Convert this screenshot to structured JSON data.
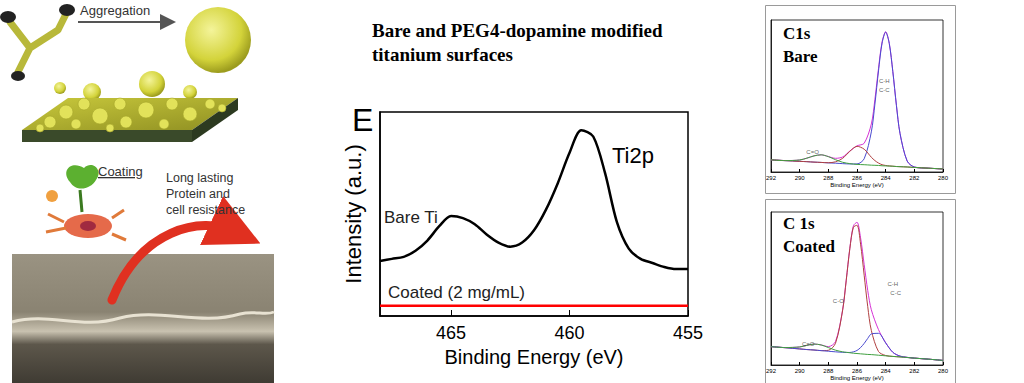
{
  "header": {
    "title": [
      "Bare and PEG4-dopamine modified",
      "titanium surfaces"
    ]
  },
  "diagram": {
    "steps": [
      "Aggregation",
      "Coating"
    ],
    "result": [
      "Long lasting",
      "Protein and",
      "cell resistance"
    ]
  },
  "chart_data": [
    {
      "type": "line",
      "panel_label": "E",
      "title": "Ti2p",
      "x_label": "Binding Energy (eV)",
      "y_label": "Intensity (a.u.)",
      "xlim": [
        468,
        455
      ],
      "xticks": [
        465,
        460,
        455
      ],
      "ylim": [
        0,
        100
      ],
      "tick_labels": "x",
      "grid": false,
      "x": [
        468,
        467.5,
        467,
        466.5,
        466,
        465.5,
        465,
        464.5,
        464,
        463.5,
        463,
        462.5,
        462,
        461.5,
        461,
        460.5,
        460,
        459.5,
        459,
        458.5,
        458,
        457.5,
        457,
        456.5,
        456,
        455.5,
        455
      ],
      "series": [
        {
          "name": "Bare Ti",
          "color": "#000000",
          "values": [
            27,
            28,
            29,
            32,
            37,
            44,
            49,
            48,
            45,
            40,
            36,
            34,
            36,
            42,
            52,
            65,
            80,
            91,
            88,
            70,
            46,
            33,
            28,
            26,
            24,
            23,
            23
          ]
        },
        {
          "name": "Coated (2 mg/mL)",
          "color": "#ff0000",
          "values": [
            5,
            5,
            5,
            5,
            5,
            5,
            5,
            5,
            5,
            5,
            5,
            5,
            5,
            5,
            5,
            5,
            5,
            5,
            5,
            5,
            5,
            5,
            5,
            5,
            5,
            5,
            5
          ]
        }
      ]
    },
    {
      "type": "line",
      "title": "C1s\nBare",
      "x_label": "Binding Energy (eV)",
      "xlim": [
        292,
        280
      ],
      "xticks": [
        292,
        290,
        288,
        286,
        284,
        282,
        280
      ],
      "ylim": [
        0,
        100
      ],
      "tick_labels": "x",
      "grid": false,
      "x": [
        292,
        291,
        290,
        289.5,
        289,
        288.5,
        288,
        287.5,
        287,
        286.5,
        286,
        285.5,
        285,
        284.75,
        284.5,
        284.25,
        284,
        283.75,
        283.5,
        283.25,
        283,
        282.5,
        282,
        281,
        280
      ],
      "series": [
        {
          "color": "#d633d6",
          "values": [
            8,
            7.5,
            7.9,
            9.1,
            10.6,
            11.3,
            10.2,
            9,
            9.9,
            13.8,
            17.2,
            18.9,
            31.6,
            47.8,
            68.1,
            85.5,
            92.3,
            84.7,
            66,
            43.9,
            25.4,
            7.2,
            3.3,
            2.5,
            2
          ]
        },
        {
          "color": "#4a4ad0",
          "values": [
            8,
            7.5,
            7,
            6.8,
            6.5,
            6.3,
            6,
            5.8,
            5.5,
            5.3,
            5.3,
            8.7,
            26.4,
            44.7,
            66.5,
            84.8,
            92,
            84.6,
            66,
            43.9,
            25.4,
            7.2,
            3.3,
            2.5,
            2
          ]
        },
        {
          "color": "#b04040",
          "values": [
            8,
            7.5,
            7,
            6.8,
            6.5,
            6.3,
            6.1,
            6.7,
            9,
            13.6,
            16.9,
            15,
            9.7,
            7.5,
            5.9,
            4.8,
            4.3,
            4,
            3.8,
            3.6,
            3.5,
            3.3,
            3,
            2.5,
            2
          ]
        },
        {
          "color": "#40a040",
          "values": [
            8,
            7.5,
            7.9,
            9.1,
            10.6,
            11.3,
            10.1,
            8.1,
            6.4,
            5.5,
            5,
            4.8,
            4.5,
            4.4,
            4.3,
            4.1,
            4,
            3.9,
            3.8,
            3.6,
            3.5,
            3.3,
            3,
            2.5,
            2
          ]
        }
      ],
      "annotations": [
        {
          "text": "C-H",
          "x": 284.1,
          "y": 60
        },
        {
          "text": "C-C",
          "x": 284.1,
          "y": 54
        },
        {
          "text": "C=O",
          "x": 289.1,
          "y": 13
        }
      ]
    },
    {
      "type": "line",
      "title": "C 1s\nCoated",
      "x_label": "Binding Energy (eV)",
      "xlim": [
        292,
        280
      ],
      "xticks": [
        292,
        290,
        288,
        286,
        284,
        282,
        280
      ],
      "ylim": [
        0,
        100
      ],
      "tick_labels": "x",
      "grid": false,
      "x": [
        292,
        291,
        290,
        289.5,
        289,
        288.5,
        288,
        287.5,
        287,
        286.75,
        286.5,
        286.25,
        286,
        285.75,
        285.5,
        285.25,
        285,
        284.5,
        284,
        283.5,
        283,
        282.5,
        282,
        281,
        280
      ],
      "series": [
        {
          "color": "#d633d6",
          "values": [
            12,
            11.4,
            11.8,
            12.8,
            13.7,
            13.1,
            12,
            15.3,
            36.2,
            55.7,
            76.4,
            91,
            93.3,
            83.1,
            65.7,
            48.6,
            36.1,
            23.1,
            14.6,
            8.3,
            5.8,
            5,
            4.5,
            3.8,
            3
          ]
        },
        {
          "color": "#b04040",
          "values": [
            12,
            11.3,
            10.5,
            10.1,
            9.8,
            9.4,
            9.6,
            14.2,
            35.9,
            55.4,
            76,
            90.1,
            91.3,
            79,
            58.7,
            38.1,
            22.6,
            8.8,
            6.2,
            5.6,
            5.3,
            4.9,
            4.5,
            3.8,
            3
          ]
        },
        {
          "color": "#4a4ad0",
          "values": [
            12,
            11.3,
            10.5,
            10.1,
            9.8,
            9.4,
            9,
            8.6,
            8.3,
            8.2,
            8.2,
            8.6,
            9.5,
            11.4,
            14.1,
            17.4,
            20.3,
            20.7,
            14.4,
            8.3,
            5.8,
            5,
            4.5,
            3.8,
            3
          ]
        },
        {
          "color": "#40a040",
          "values": [
            12,
            11.4,
            11.8,
            12.8,
            13.7,
            13.1,
            11.4,
            9.7,
            8.6,
            8.3,
            8,
            7.7,
            7.5,
            7.3,
            7.1,
            6.9,
            6.8,
            6.4,
            6,
            5.6,
            5.3,
            4.9,
            4.5,
            3.8,
            3
          ]
        }
      ],
      "annotations": [
        {
          "text": "C-O",
          "x": 287.3,
          "y": 42
        },
        {
          "text": "C-H",
          "x": 283.5,
          "y": 53
        },
        {
          "text": "C-C",
          "x": 283.3,
          "y": 47
        },
        {
          "text": "C=O",
          "x": 289.4,
          "y": 14
        }
      ]
    }
  ]
}
